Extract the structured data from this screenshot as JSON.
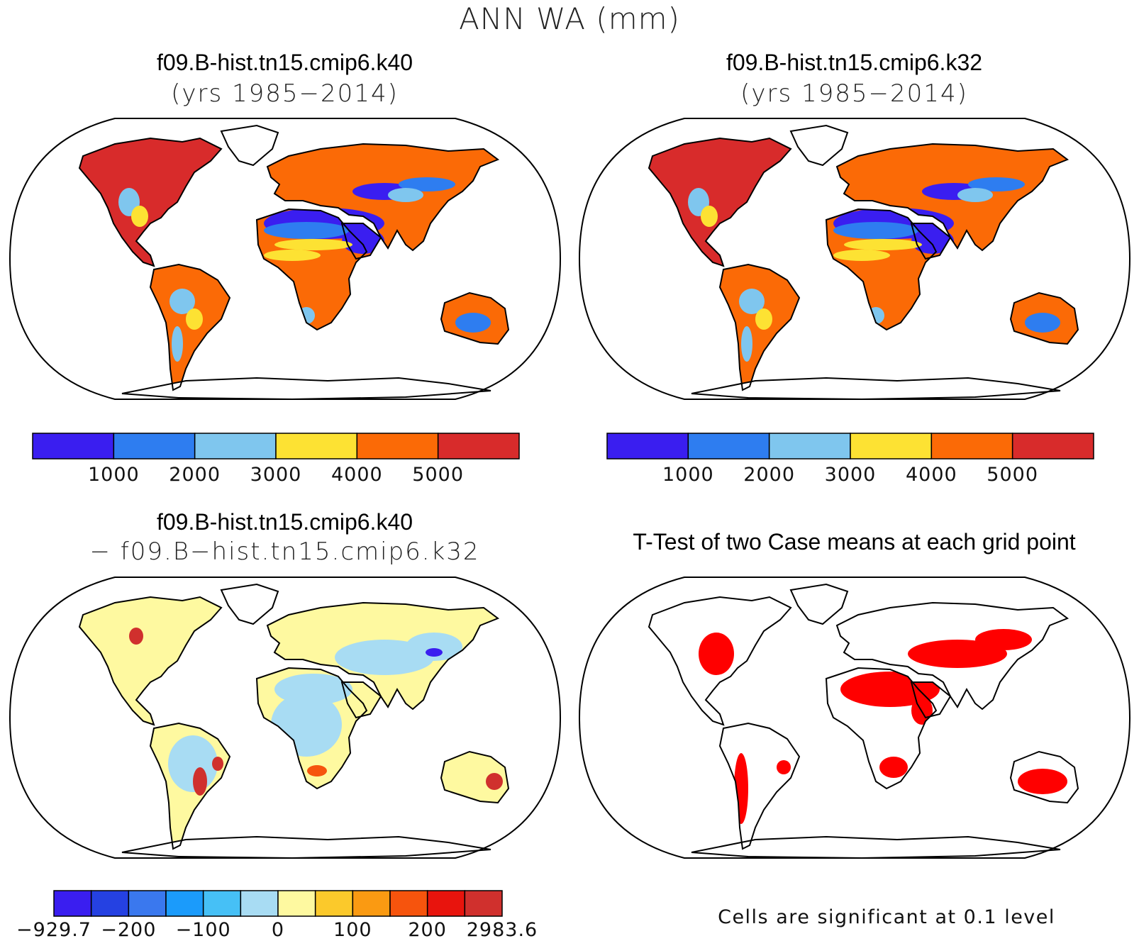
{
  "figure": {
    "title": "ANN WA (mm)"
  },
  "panels": [
    {
      "title_line1": "f09.B-hist.tn15.cmip6.k40",
      "title_line2": "(yrs 1985−2014)"
    },
    {
      "title_line1": "f09.B-hist.tn15.cmip6.k32",
      "title_line2": "(yrs 1985−2014)"
    },
    {
      "title_line1": "f09.B-hist.tn15.cmip6.k40",
      "title_line2": "− f09.B−hist.tn15.cmip6.k32"
    },
    {
      "title_line1": "T-Test of two Case means at each grid point",
      "note": "Cells are significant at 0.1 level"
    }
  ],
  "colorbars": {
    "abs": {
      "colors": [
        "#3a1ef0",
        "#2e7df0",
        "#7fc6ee",
        "#fde233",
        "#fb6a06",
        "#d82b2b"
      ],
      "ticks": [
        "1000",
        "2000",
        "3000",
        "4000",
        "5000"
      ]
    },
    "diff": {
      "colors": [
        "#3a1ef0",
        "#2541e2",
        "#3a78ee",
        "#1b9bfb",
        "#46c0f6",
        "#a8dcf3",
        "#fef9a0",
        "#fbc92b",
        "#fa9a12",
        "#f6540d",
        "#e8140d",
        "#d0302d"
      ],
      "ticks": [
        "−929.7",
        "−200",
        "−100",
        "0",
        "100",
        "200",
        "2983.6"
      ]
    }
  },
  "colors": {
    "significance": "#ff0000",
    "outline": "#000000"
  }
}
